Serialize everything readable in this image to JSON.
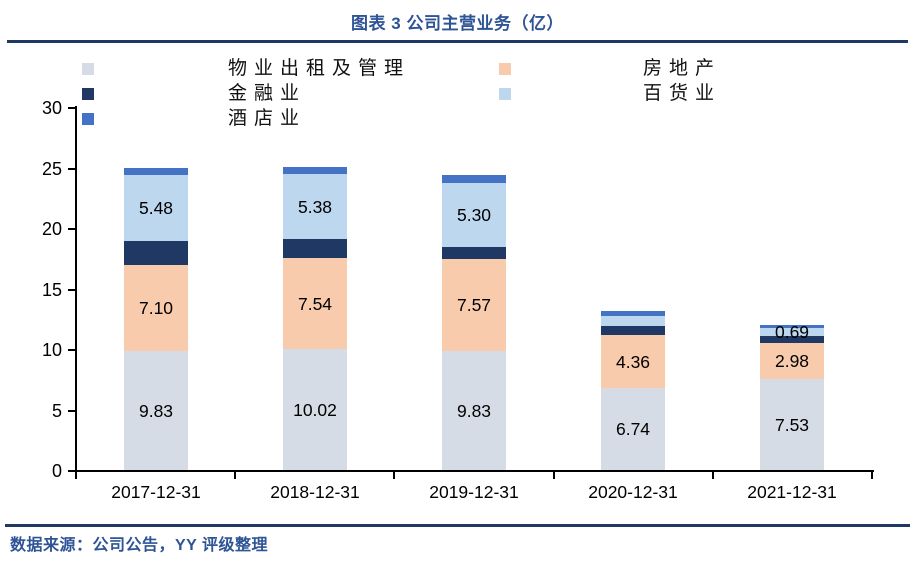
{
  "title": "图表 3 公司主营业务（亿）",
  "footer": {
    "source": "数据来源：公司公告，YY 评级整理"
  },
  "colors": {
    "accent_text": "#2F5496",
    "rule": "#1F3864",
    "axis": "#000000",
    "background": "#FFFFFF"
  },
  "chart_data": {
    "type": "bar",
    "stacked": true,
    "grid": false,
    "legend_position": "top",
    "title": "图表 3 公司主营业务（亿）",
    "xlabel": "",
    "ylabel": "",
    "ylim": [
      0,
      30
    ],
    "yticks": [
      0,
      5,
      10,
      15,
      20,
      25,
      30
    ],
    "categories": [
      "2017-12-31",
      "2018-12-31",
      "2019-12-31",
      "2020-12-31",
      "2021-12-31"
    ],
    "series": [
      {
        "name": "物业出租及管理",
        "color": "#D6DCE5",
        "values": [
          9.83,
          10.02,
          9.83,
          6.74,
          7.53
        ],
        "labels": [
          "9.83",
          "10.02",
          "9.83",
          "6.74",
          "7.53"
        ]
      },
      {
        "name": "房地产",
        "color": "#F8CBAD",
        "values": [
          7.1,
          7.54,
          7.57,
          4.36,
          2.98
        ],
        "labels": [
          "7.10",
          "7.54",
          "7.57",
          "4.36",
          "2.98"
        ]
      },
      {
        "name": "金融业",
        "color": "#1F3864",
        "values": [
          2.0,
          1.6,
          1.0,
          0.75,
          0.55
        ],
        "labels": [
          "",
          "",
          "",
          "",
          ""
        ]
      },
      {
        "name": "百货业",
        "color": "#BDD7EE",
        "values": [
          5.48,
          5.38,
          5.3,
          0.83,
          0.69
        ],
        "labels": [
          "5.48",
          "5.38",
          "5.30",
          "",
          "0.69"
        ]
      },
      {
        "name": "酒店业",
        "color": "#4472C4",
        "values": [
          0.6,
          0.58,
          0.69,
          0.41,
          0.27
        ],
        "labels": [
          "",
          "",
          "",
          "",
          ""
        ]
      }
    ]
  }
}
